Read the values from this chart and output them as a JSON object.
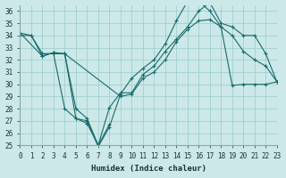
{
  "xlabel": "Humidex (Indice chaleur)",
  "background_color": "#cce8e8",
  "grid_color": "#99cccc",
  "line_color": "#1a6b6b",
  "xlim": [
    0,
    23
  ],
  "ylim": [
    25,
    36.5
  ],
  "yticks": [
    25,
    26,
    27,
    28,
    29,
    30,
    31,
    32,
    33,
    34,
    35,
    36
  ],
  "xticks": [
    0,
    1,
    2,
    3,
    4,
    5,
    6,
    7,
    8,
    9,
    10,
    11,
    12,
    13,
    14,
    15,
    16,
    17,
    18,
    19,
    20,
    21,
    22,
    23
  ],
  "line1_x": [
    0,
    1,
    2,
    3,
    4,
    9,
    10,
    11,
    12,
    13,
    14,
    15,
    16,
    17,
    18,
    19,
    20,
    21,
    22,
    23
  ],
  "line1_y": [
    34.0,
    34.0,
    32.5,
    32.5,
    32.5,
    29.0,
    29.2,
    30.5,
    31.0,
    32.0,
    33.5,
    34.5,
    35.2,
    35.3,
    34.7,
    29.9,
    30.0,
    30.0,
    30.0,
    30.2
  ],
  "line2_x": [
    0,
    1,
    2,
    3,
    4,
    5,
    6,
    7,
    8,
    9,
    10,
    11,
    12,
    13,
    14,
    15,
    16,
    17,
    18,
    19,
    20,
    21,
    22,
    23
  ],
  "line2_y": [
    34.2,
    34.0,
    32.3,
    32.6,
    32.5,
    27.2,
    27.0,
    24.9,
    26.5,
    29.2,
    30.5,
    31.3,
    32.0,
    33.3,
    35.2,
    36.8,
    36.8,
    36.0,
    34.7,
    34.0,
    32.7,
    32.0,
    31.5,
    30.2
  ],
  "line3_x": [
    0,
    2,
    3,
    4,
    5,
    6,
    7,
    8,
    9,
    10,
    11,
    12,
    13,
    14,
    15,
    16,
    17,
    18,
    19,
    20,
    21,
    22,
    23
  ],
  "line3_y": [
    34.2,
    32.3,
    32.6,
    32.5,
    28.0,
    27.2,
    25.0,
    28.1,
    29.3,
    29.3,
    30.8,
    31.5,
    32.7,
    33.7,
    34.7,
    36.0,
    36.7,
    35.0,
    34.7,
    34.0,
    34.0,
    32.5,
    30.2
  ],
  "line4_x": [
    2,
    3,
    4,
    5,
    6,
    7,
    8
  ],
  "line4_y": [
    32.5,
    32.5,
    28.0,
    27.2,
    26.8,
    25.0,
    26.7
  ]
}
